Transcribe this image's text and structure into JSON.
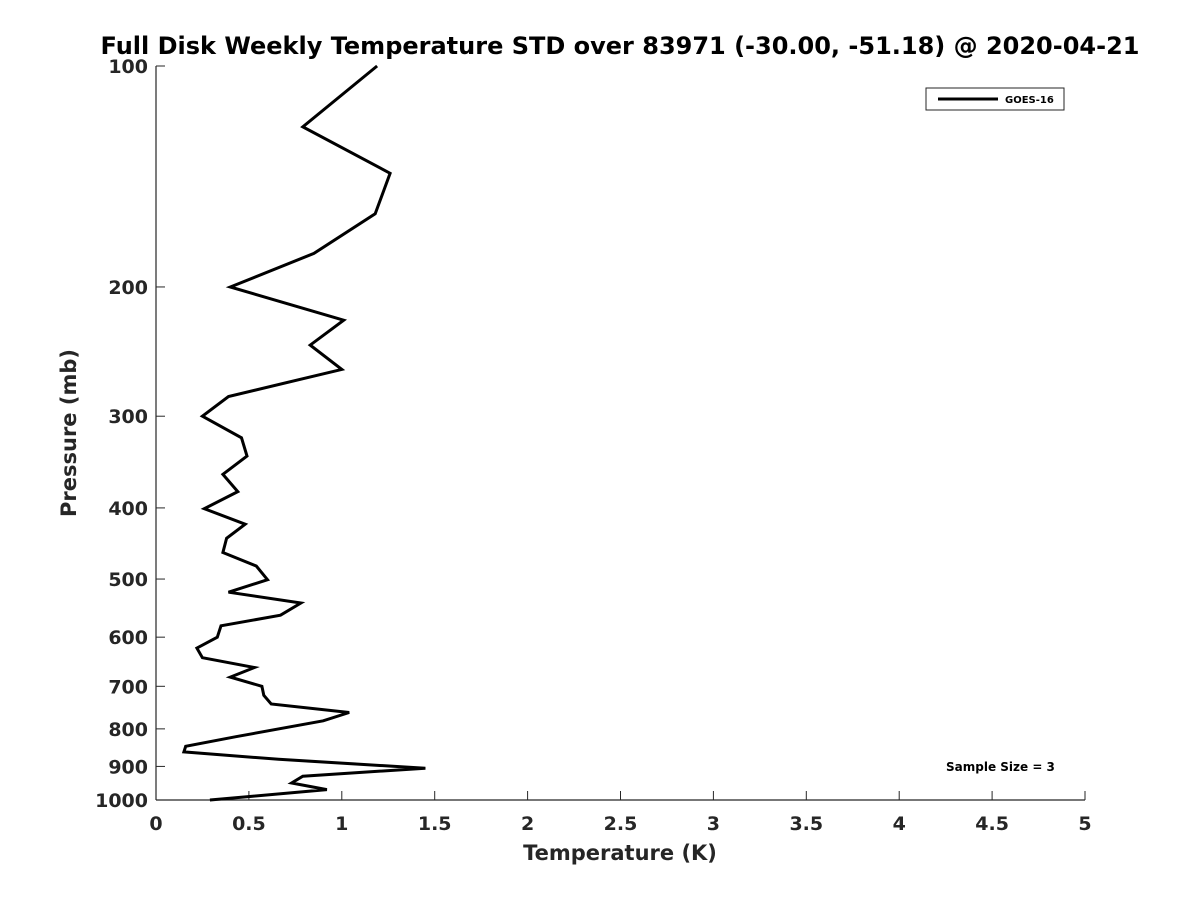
{
  "chart_data": {
    "type": "line",
    "title": "Full Disk Weekly Temperature STD over 83971 (-30.00, -51.18) @ 2020-04-21",
    "xlabel": "Temperature (K)",
    "ylabel": "Pressure (mb)",
    "xlim": [
      0,
      5
    ],
    "ylim": [
      100,
      1000
    ],
    "y_scale": "log",
    "y_reversed": true,
    "grid": false,
    "x_ticks": [
      "0",
      "0.5",
      "1",
      "1.5",
      "2",
      "2.5",
      "3",
      "3.5",
      "4",
      "4.5",
      "5"
    ],
    "y_ticks": [
      "100",
      "200",
      "300",
      "400",
      "500",
      "600",
      "700",
      "800",
      "900",
      "1000"
    ],
    "legend_placement": "top-right",
    "annotation": "Sample Size = 3",
    "series": [
      {
        "name": "GOES-16",
        "color": "#000000",
        "points": [
          [
            1.19,
            100
          ],
          [
            0.79,
            121
          ],
          [
            1.26,
            140
          ],
          [
            1.18,
            159
          ],
          [
            0.85,
            180
          ],
          [
            0.4,
            200
          ],
          [
            1.01,
            222
          ],
          [
            0.83,
            240
          ],
          [
            1.0,
            259
          ],
          [
            0.39,
            282
          ],
          [
            0.25,
            300
          ],
          [
            0.46,
            321
          ],
          [
            0.49,
            340
          ],
          [
            0.36,
            360
          ],
          [
            0.44,
            380
          ],
          [
            0.26,
            401
          ],
          [
            0.48,
            421
          ],
          [
            0.38,
            440
          ],
          [
            0.36,
            460
          ],
          [
            0.54,
            480
          ],
          [
            0.6,
            501
          ],
          [
            0.39,
            521
          ],
          [
            0.78,
            539
          ],
          [
            0.67,
            560
          ],
          [
            0.35,
            579
          ],
          [
            0.33,
            600
          ],
          [
            0.22,
            621
          ],
          [
            0.25,
            640
          ],
          [
            0.53,
            660
          ],
          [
            0.4,
            680
          ],
          [
            0.57,
            700
          ],
          [
            0.58,
            720
          ],
          [
            0.62,
            740
          ],
          [
            1.04,
            760
          ],
          [
            0.9,
            780
          ],
          [
            0.43,
            820
          ],
          [
            0.16,
            845
          ],
          [
            0.15,
            860
          ],
          [
            0.66,
            880
          ],
          [
            1.45,
            905
          ],
          [
            0.79,
            928
          ],
          [
            0.73,
            948
          ],
          [
            0.92,
            968
          ],
          [
            0.52,
            988
          ],
          [
            0.29,
            1000
          ]
        ]
      }
    ]
  }
}
